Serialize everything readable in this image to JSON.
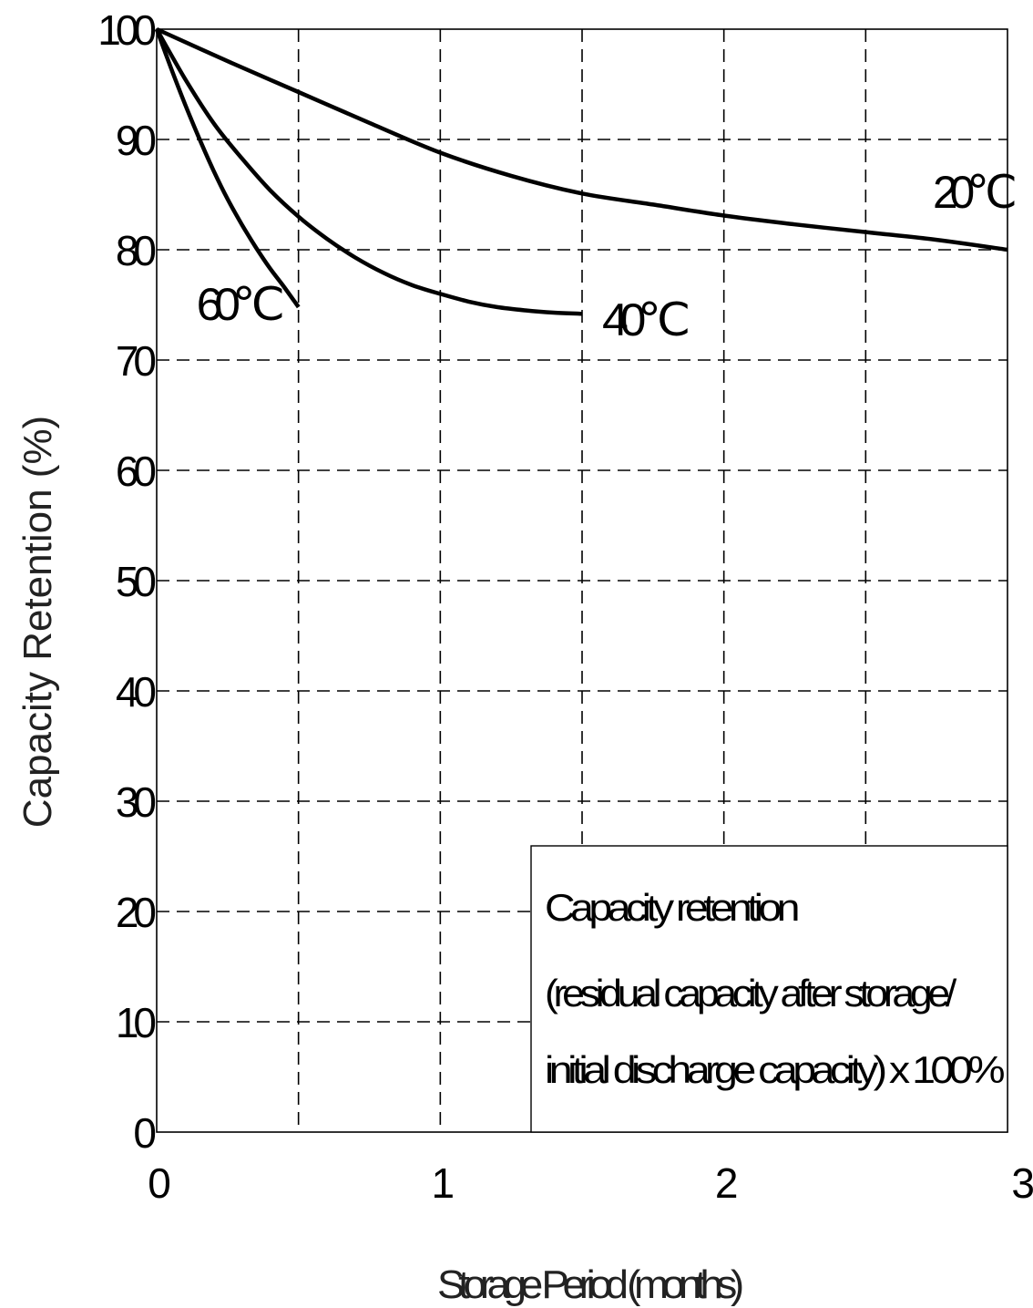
{
  "chart_data": {
    "type": "line",
    "title": "",
    "xlabel": "Storage Period (months)",
    "ylabel": "Capacity Retention (%)",
    "xlim": [
      0,
      3
    ],
    "ylim": [
      0,
      100
    ],
    "x_ticks": [
      "0",
      "1",
      "2",
      "3"
    ],
    "y_ticks": [
      "0",
      "10",
      "20",
      "30",
      "40",
      "50",
      "60",
      "70",
      "80",
      "90",
      "100"
    ],
    "grid": true,
    "series": [
      {
        "name": "20℃",
        "x": [
          0,
          0.25,
          0.5,
          0.75,
          1.0,
          1.25,
          1.5,
          1.75,
          2.0,
          2.25,
          2.5,
          2.75,
          3.0
        ],
        "y": [
          100,
          97.1,
          94.3,
          91.5,
          88.8,
          86.7,
          85.1,
          84.1,
          83.1,
          82.3,
          81.6,
          80.9,
          80.0
        ]
      },
      {
        "name": "40℃",
        "x": [
          0,
          0.1,
          0.2,
          0.3,
          0.4,
          0.5,
          0.6,
          0.7,
          0.8,
          0.9,
          1.0,
          1.1,
          1.2,
          1.3,
          1.4,
          1.5
        ],
        "y": [
          100,
          95.5,
          91.5,
          88.3,
          85.4,
          83.0,
          81.0,
          79.3,
          77.9,
          76.8,
          76.0,
          75.3,
          74.8,
          74.5,
          74.3,
          74.2
        ]
      },
      {
        "name": "60℃",
        "x": [
          0,
          0.05,
          0.1,
          0.15,
          0.2,
          0.25,
          0.3,
          0.35,
          0.4,
          0.45,
          0.5
        ],
        "y": [
          100,
          96.5,
          93.2,
          90.1,
          87.2,
          84.6,
          82.3,
          80.2,
          78.3,
          76.6,
          74.8
        ]
      }
    ],
    "annotation": [
      "Capacity retention",
      "(residual capacity after storage/",
      "initial discharge capacity) x 100%"
    ]
  }
}
